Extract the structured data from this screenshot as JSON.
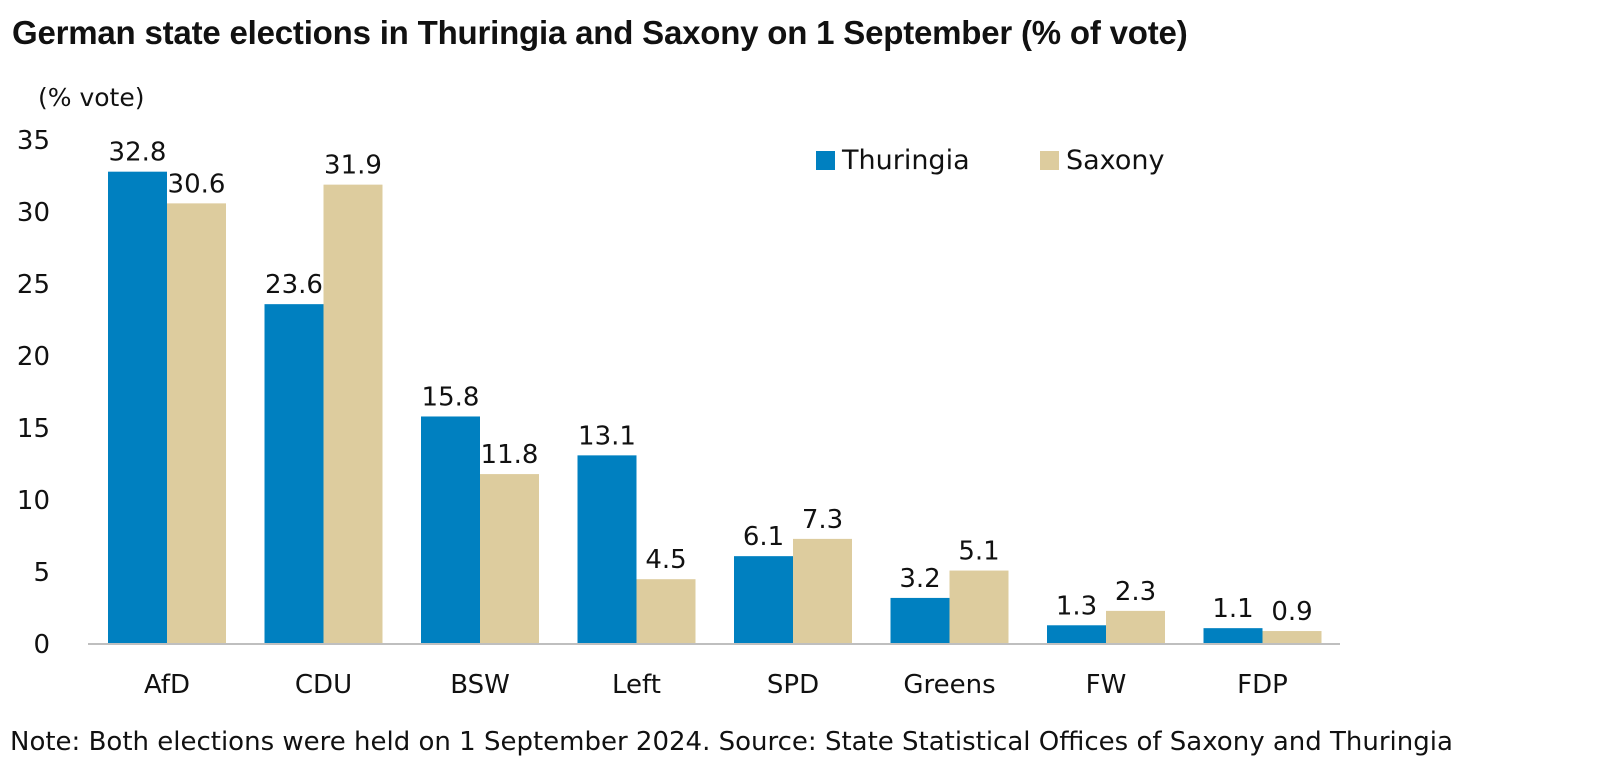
{
  "chart_data": {
    "type": "bar",
    "title": "German state elections in Thuringia and Saxony on 1 September (% of vote)",
    "ylabel": "(% vote)",
    "xlabel": "",
    "categories": [
      "AfD",
      "CDU",
      "BSW",
      "Left",
      "SPD",
      "Greens",
      "FW",
      "FDP"
    ],
    "series": [
      {
        "name": "Thuringia",
        "color": "#0080c0",
        "values": [
          32.8,
          23.6,
          15.8,
          13.1,
          6.1,
          3.2,
          1.3,
          1.1
        ]
      },
      {
        "name": "Saxony",
        "color": "#ddcc9e",
        "values": [
          30.6,
          31.9,
          11.8,
          4.5,
          7.3,
          5.1,
          2.3,
          0.9
        ]
      }
    ],
    "ylim": [
      0,
      35
    ],
    "yticks": [
      0,
      5,
      10,
      15,
      20,
      25,
      30,
      35
    ],
    "grid": false,
    "legend_position": "top-right",
    "data_labels": true,
    "note": "Note: Both elections were held on 1 September 2024. Source: State Statistical Offices of Saxony and Thuringia"
  }
}
